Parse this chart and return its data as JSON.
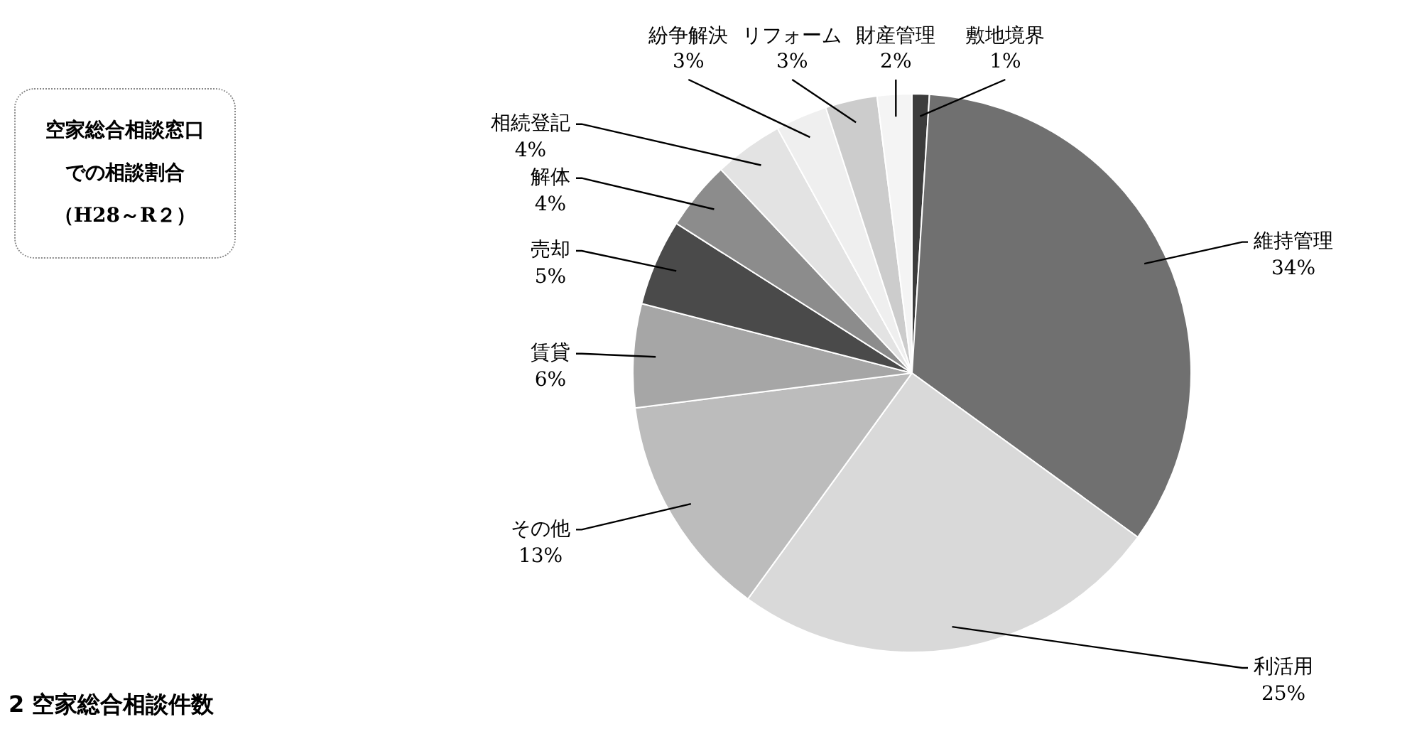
{
  "chart_data": {
    "type": "pie",
    "title": "空家総合相談窓口での相談割合（H28～R２）",
    "categories": [
      "敷地境界",
      "維持管理",
      "利活用",
      "その他",
      "賃貸",
      "売却",
      "解体",
      "相続登記",
      "紛争解決",
      "リフォーム",
      "財産管理"
    ],
    "values": [
      1,
      34,
      25,
      13,
      6,
      5,
      4,
      4,
      3,
      3,
      2
    ],
    "value_labels": [
      "1%",
      "34%",
      "25%",
      "13%",
      "6%",
      "5%",
      "4%",
      "4%",
      "3%",
      "3%",
      "2%"
    ],
    "colors": [
      "#3c3c3c",
      "#707070",
      "#d9d9d9",
      "#bcbcbc",
      "#a6a6a6",
      "#4a4a4a",
      "#8c8c8c",
      "#e3e3e3",
      "#efefef",
      "#cccccc",
      "#f4f4f4"
    ],
    "legend": false,
    "annotations": [
      "2 空家総合相談件数"
    ]
  }
}
